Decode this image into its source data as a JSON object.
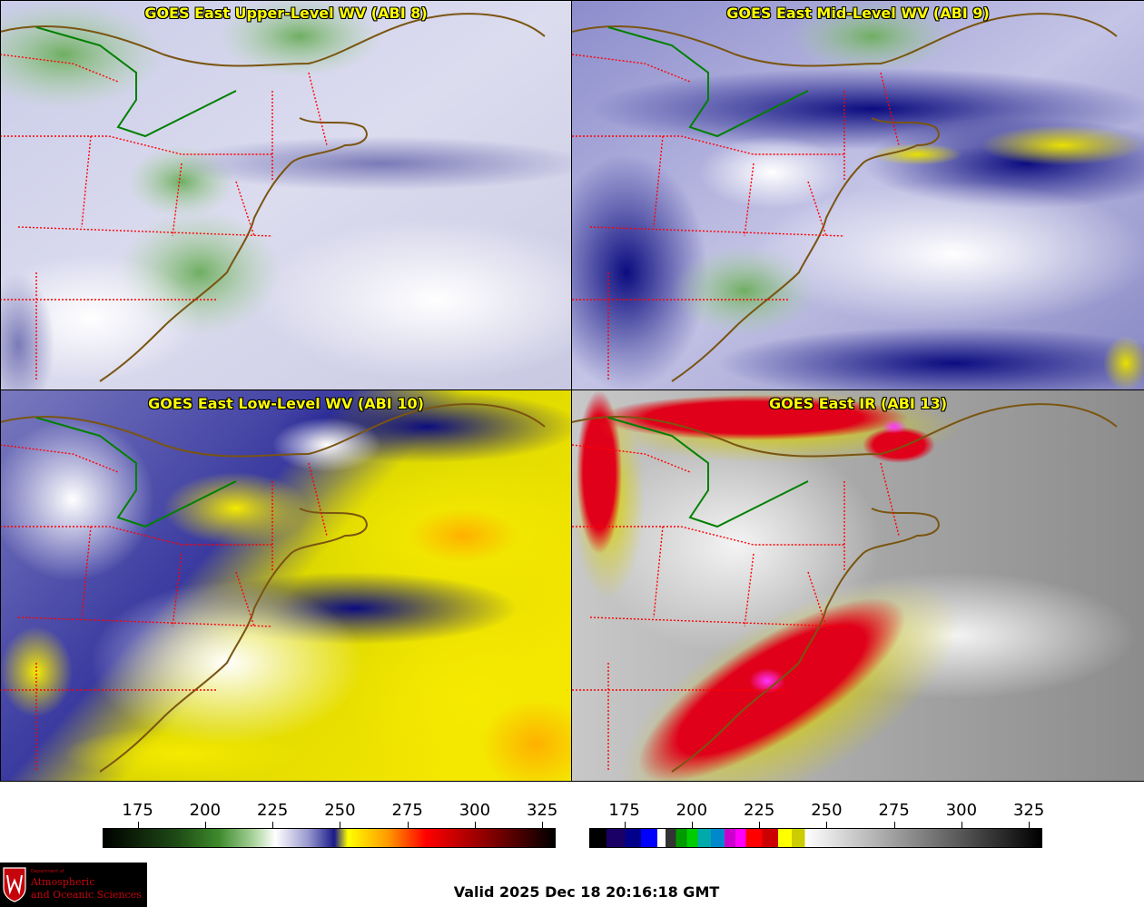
{
  "panels": [
    {
      "title": "GOES East Upper-Level WV (ABI 8)",
      "scheme": "upper"
    },
    {
      "title": "GOES East Mid-Level WV (ABI 9)",
      "scheme": "mid"
    },
    {
      "title": "GOES East Low-Level WV (ABI 10)",
      "scheme": "low"
    },
    {
      "title": "GOES East IR (ABI 13)",
      "scheme": "ir"
    }
  ],
  "colorbars": {
    "wv": {
      "ticks": [
        "175",
        "200",
        "225",
        "250",
        "275",
        "300",
        "325"
      ],
      "tick_values": [
        175,
        200,
        225,
        250,
        275,
        300,
        325
      ],
      "range": [
        162,
        330
      ],
      "stops": [
        {
          "v": 162,
          "c": "#000000"
        },
        {
          "v": 190,
          "c": "#1f4d16"
        },
        {
          "v": 205,
          "c": "#3e8a2c"
        },
        {
          "v": 218,
          "c": "#a9d49c"
        },
        {
          "v": 226,
          "c": "#ffffff"
        },
        {
          "v": 238,
          "c": "#9b9bd0"
        },
        {
          "v": 248,
          "c": "#1a1a8a"
        },
        {
          "v": 253,
          "c": "#ffff00"
        },
        {
          "v": 268,
          "c": "#ff9900"
        },
        {
          "v": 282,
          "c": "#ff0000"
        },
        {
          "v": 305,
          "c": "#8a0000"
        },
        {
          "v": 330,
          "c": "#000000"
        }
      ]
    },
    "ir": {
      "ticks": [
        "175",
        "200",
        "225",
        "250",
        "275",
        "300",
        "325"
      ],
      "tick_values": [
        175,
        200,
        225,
        250,
        275,
        300,
        325
      ],
      "range": [
        162,
        330
      ],
      "segments": [
        {
          "from": 162,
          "to": 168,
          "c": "#000000"
        },
        {
          "from": 168,
          "to": 175,
          "c": "#1a0066"
        },
        {
          "from": 175,
          "to": 181,
          "c": "#00008b"
        },
        {
          "from": 181,
          "to": 187,
          "c": "#0000ff"
        },
        {
          "from": 187,
          "to": 190,
          "c": "#ffffff"
        },
        {
          "from": 190,
          "to": 194,
          "c": "#333333"
        },
        {
          "from": 194,
          "to": 198,
          "c": "#009900"
        },
        {
          "from": 198,
          "to": 202,
          "c": "#00cc00"
        },
        {
          "from": 202,
          "to": 207,
          "c": "#00aaaa"
        },
        {
          "from": 207,
          "to": 212,
          "c": "#0088cc"
        },
        {
          "from": 212,
          "to": 216,
          "c": "#cc00cc"
        },
        {
          "from": 216,
          "to": 220,
          "c": "#ff00ff"
        },
        {
          "from": 220,
          "to": 226,
          "c": "#ff0000"
        },
        {
          "from": 226,
          "to": 232,
          "c": "#cc0000"
        },
        {
          "from": 232,
          "to": 237,
          "c": "#ffff00"
        },
        {
          "from": 237,
          "to": 242,
          "c": "#cccc00"
        },
        {
          "from": 242,
          "to": 330,
          "c": "gray"
        }
      ]
    }
  },
  "colors": {
    "border_country": "#7a5511",
    "border_state": "#ff0000",
    "border_us_canada": "#008000"
  },
  "logo": {
    "dept_line": "Department of",
    "line1": "Atmospheric",
    "line2": "and Oceanic Sciences"
  },
  "valid_time": "Valid 2025 Dec 18 20:16:18 GMT"
}
